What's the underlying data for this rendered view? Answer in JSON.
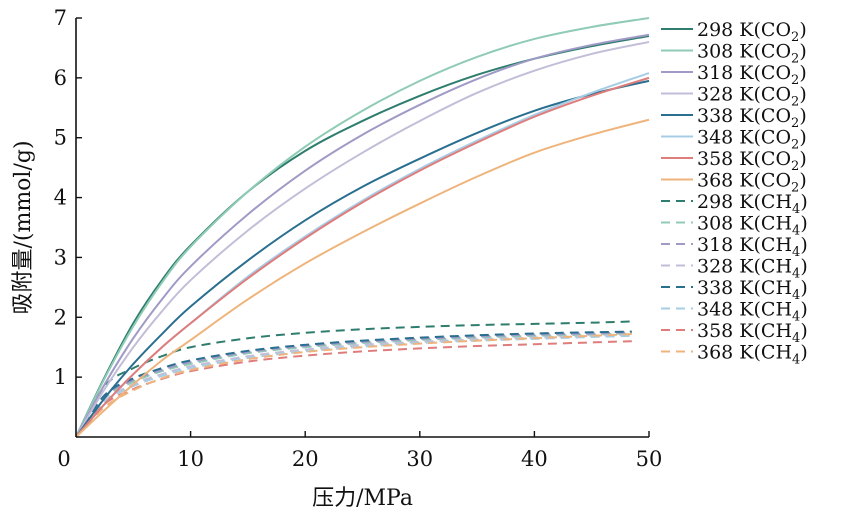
{
  "chart_data": {
    "type": "line",
    "xlabel": "压力/MPa",
    "ylabel": "吸附量/(mmol/g)",
    "xlim": [
      0,
      50
    ],
    "ylim": [
      0,
      7
    ],
    "xticks": [
      0,
      10,
      20,
      30,
      40,
      50
    ],
    "yticks": [
      1,
      2,
      3,
      4,
      5,
      6,
      7
    ],
    "x_tick_labels": [
      "0",
      "10",
      "20",
      "30",
      "40",
      "50"
    ],
    "y_tick_labels": [
      "1",
      "2",
      "3",
      "4",
      "5",
      "6",
      "7"
    ],
    "grid": false,
    "legend_position": "right",
    "x": [
      0,
      2.5,
      5,
      7.5,
      10,
      15,
      20,
      25,
      30,
      35,
      40,
      45,
      50
    ],
    "series": [
      {
        "name": "298 K(CO2)",
        "label_main": "298 K(CO",
        "label_sub": "2",
        "label_end": ")",
        "color": "#2e7d6e",
        "dash": "solid",
        "values": [
          0,
          1.0,
          1.9,
          2.62,
          3.2,
          4.1,
          4.78,
          5.28,
          5.7,
          6.05,
          6.32,
          6.53,
          6.7
        ]
      },
      {
        "name": "308 K(CO2)",
        "label_main": "308 K(CO",
        "label_sub": "2",
        "label_end": ")",
        "color": "#8fcbb5",
        "dash": "solid",
        "values": [
          0,
          0.98,
          1.85,
          2.58,
          3.18,
          4.1,
          4.85,
          5.45,
          5.95,
          6.35,
          6.65,
          6.85,
          7.0
        ]
      },
      {
        "name": "318 K(CO2)",
        "label_main": "318 K(CO",
        "label_sub": "2",
        "label_end": ")",
        "color": "#9f9ac6",
        "dash": "solid",
        "values": [
          0,
          0.88,
          1.65,
          2.3,
          2.85,
          3.72,
          4.45,
          5.05,
          5.55,
          5.98,
          6.32,
          6.55,
          6.72
        ]
      },
      {
        "name": "328 K(CO2)",
        "label_main": "328 K(CO",
        "label_sub": "2",
        "label_end": ")",
        "color": "#c2bed8",
        "dash": "solid",
        "values": [
          0,
          0.8,
          1.5,
          2.1,
          2.62,
          3.45,
          4.15,
          4.75,
          5.28,
          5.75,
          6.12,
          6.4,
          6.6
        ]
      },
      {
        "name": "338 K(CO2)",
        "label_main": "338 K(CO",
        "label_sub": "2",
        "label_end": ")",
        "color": "#2a6f8f",
        "dash": "solid",
        "values": [
          0,
          0.65,
          1.22,
          1.72,
          2.18,
          2.95,
          3.62,
          4.18,
          4.65,
          5.08,
          5.45,
          5.73,
          5.95
        ]
      },
      {
        "name": "348 K(CO2)",
        "label_main": "348 K(CO",
        "label_sub": "2",
        "label_end": ")",
        "color": "#a7cde6",
        "dash": "solid",
        "values": [
          0,
          0.55,
          1.05,
          1.5,
          1.9,
          2.68,
          3.35,
          3.95,
          4.48,
          4.95,
          5.38,
          5.75,
          6.08
        ]
      },
      {
        "name": "358 K(CO2)",
        "label_main": "358 K(CO",
        "label_sub": "2",
        "label_end": ")",
        "color": "#df7c7c",
        "dash": "solid",
        "values": [
          0,
          0.55,
          1.05,
          1.5,
          1.9,
          2.65,
          3.32,
          3.92,
          4.45,
          4.92,
          5.35,
          5.7,
          6.0
        ]
      },
      {
        "name": "368 K(CO2)",
        "label_main": "368 K(CO",
        "label_sub": "2",
        "label_end": ")",
        "color": "#efb47c",
        "dash": "solid",
        "values": [
          0,
          0.45,
          0.88,
          1.28,
          1.62,
          2.3,
          2.9,
          3.42,
          3.9,
          4.35,
          4.75,
          5.05,
          5.3
        ]
      },
      {
        "name": "298 K(CH4)",
        "label_main": "298 K(CH",
        "label_sub": "4",
        "label_end": ")",
        "color": "#2e7d6e",
        "dash": "dashed",
        "values": [
          0,
          0.85,
          1.15,
          1.35,
          1.5,
          1.65,
          1.74,
          1.8,
          1.84,
          1.87,
          1.89,
          1.91,
          1.93
        ]
      },
      {
        "name": "308 K(CH4)",
        "label_main": "308 K(CH",
        "label_sub": "4",
        "label_end": ")",
        "color": "#8fcbb5",
        "dash": "dashed",
        "values": [
          0,
          0.65,
          0.92,
          1.1,
          1.22,
          1.4,
          1.5,
          1.57,
          1.62,
          1.66,
          1.69,
          1.71,
          1.73
        ]
      },
      {
        "name": "318 K(CH4)",
        "label_main": "318 K(CH",
        "label_sub": "4",
        "label_end": ")",
        "color": "#9f9ac6",
        "dash": "dashed",
        "values": [
          0,
          0.68,
          0.95,
          1.12,
          1.25,
          1.42,
          1.52,
          1.59,
          1.64,
          1.68,
          1.71,
          1.73,
          1.75
        ]
      },
      {
        "name": "328 K(CH4)",
        "label_main": "328 K(CH",
        "label_sub": "4",
        "label_end": ")",
        "color": "#c2bed8",
        "dash": "dashed",
        "values": [
          0,
          0.6,
          0.88,
          1.05,
          1.18,
          1.35,
          1.46,
          1.54,
          1.59,
          1.63,
          1.66,
          1.69,
          1.71
        ]
      },
      {
        "name": "338 K(CH4)",
        "label_main": "338 K(CH",
        "label_sub": "4",
        "label_end": ")",
        "color": "#2a6f8f",
        "dash": "dashed",
        "values": [
          0,
          0.7,
          0.98,
          1.15,
          1.28,
          1.44,
          1.54,
          1.61,
          1.66,
          1.7,
          1.73,
          1.75,
          1.76
        ]
      },
      {
        "name": "348 K(CH4)",
        "label_main": "348 K(CH",
        "label_sub": "4",
        "label_end": ")",
        "color": "#a7cde6",
        "dash": "dashed",
        "values": [
          0,
          0.58,
          0.85,
          1.02,
          1.15,
          1.32,
          1.43,
          1.51,
          1.57,
          1.61,
          1.64,
          1.67,
          1.69
        ]
      },
      {
        "name": "358 K(CH4)",
        "label_main": "358 K(CH",
        "label_sub": "4",
        "label_end": ")",
        "color": "#df7c7c",
        "dash": "dashed",
        "values": [
          0,
          0.55,
          0.8,
          0.97,
          1.1,
          1.26,
          1.36,
          1.43,
          1.48,
          1.52,
          1.55,
          1.58,
          1.6
        ]
      },
      {
        "name": "368 K(CH4)",
        "label_main": "368 K(CH",
        "label_sub": "4",
        "label_end": ")",
        "color": "#efb47c",
        "dash": "dashed",
        "values": [
          0,
          0.5,
          0.78,
          0.98,
          1.12,
          1.3,
          1.42,
          1.5,
          1.56,
          1.61,
          1.65,
          1.69,
          1.72
        ]
      }
    ]
  }
}
